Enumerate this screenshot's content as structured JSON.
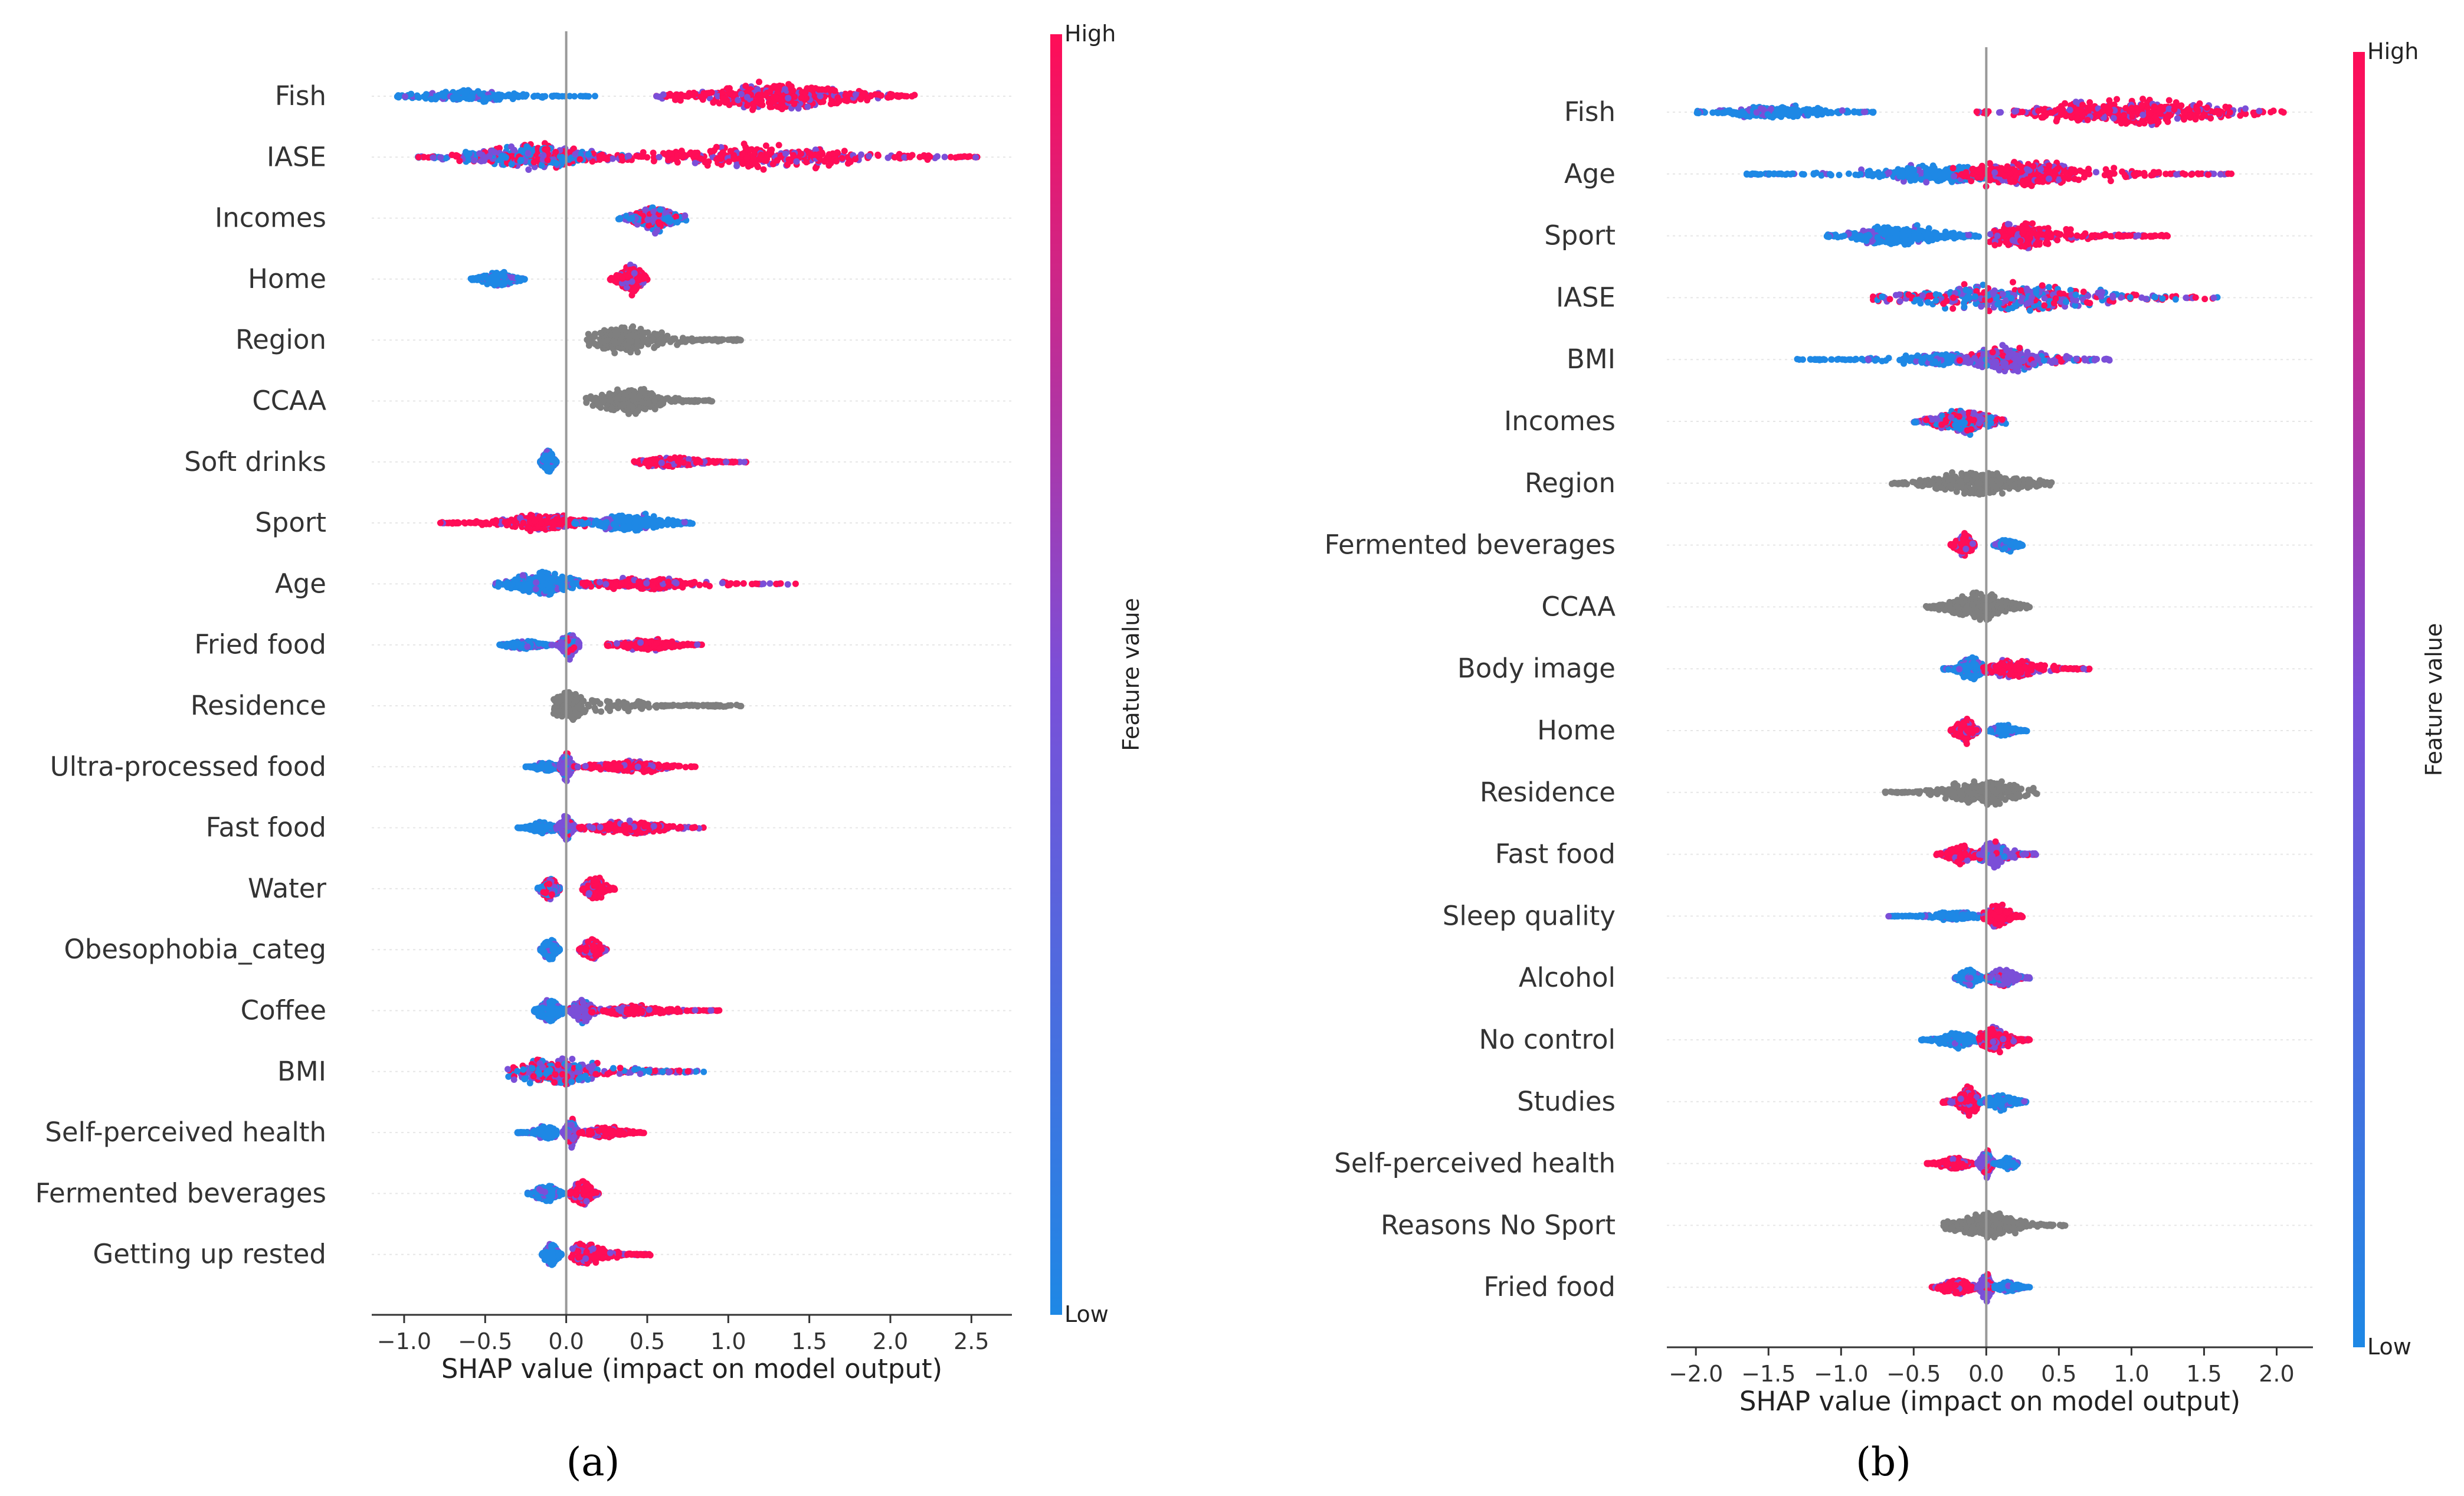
{
  "figure": {
    "caption_a": "(a)",
    "caption_b": "(b)"
  },
  "colors": {
    "low": "#1e88e5",
    "mid": "#7b4fd8",
    "high": "#ff0d57",
    "categorical": "#7f7f7f",
    "axis": "#333333",
    "zero_line": "#999999",
    "grid": "#e6e6e6"
  },
  "chart_data": [
    {
      "type": "scatter",
      "subtype": "shap-beeswarm",
      "panel": "(a)",
      "xlabel": "SHAP value (impact on model output)",
      "ylabel": "",
      "xlim": [
        -1.2,
        2.75
      ],
      "xticks": [
        -1.0,
        -0.5,
        0.0,
        0.5,
        1.0,
        1.5,
        2.0,
        2.5
      ],
      "xtick_labels": [
        "−1.0",
        "−0.5",
        "0.0",
        "0.5",
        "1.0",
        "1.5",
        "2.0",
        "2.5"
      ],
      "colorbar": {
        "title": "Feature value",
        "high": "High",
        "low": "Low"
      },
      "features": [
        {
          "name": "Fish",
          "cat": false,
          "groups": [
            {
              "c": "low",
              "min": -1.05,
              "max": 0.18,
              "center": -0.6,
              "w": 0.35
            },
            {
              "c": "high",
              "min": 0.55,
              "max": 2.15,
              "center": 1.3,
              "w": 1.0
            }
          ]
        },
        {
          "name": "IASE",
          "cat": false,
          "groups": [
            {
              "c": "mixed",
              "min": -0.95,
              "max": 0.4,
              "center": -0.2,
              "w": 0.85
            },
            {
              "c": "high",
              "min": 0.2,
              "max": 2.55,
              "center": 1.2,
              "w": 0.8
            }
          ]
        },
        {
          "name": "Incomes",
          "cat": false,
          "groups": [
            {
              "c": "mixed",
              "min": 0.32,
              "max": 0.75,
              "center": 0.55,
              "w": 0.85
            }
          ]
        },
        {
          "name": "Home",
          "cat": false,
          "groups": [
            {
              "c": "low",
              "min": -0.6,
              "max": -0.25,
              "center": -0.42,
              "w": 0.45
            },
            {
              "c": "high",
              "min": 0.27,
              "max": 0.5,
              "center": 0.4,
              "w": 0.95
            }
          ]
        },
        {
          "name": "Region",
          "cat": true,
          "groups": [
            {
              "c": "cat",
              "min": 0.12,
              "max": 1.08,
              "center": 0.35,
              "w": 0.85
            }
          ]
        },
        {
          "name": "CCAA",
          "cat": true,
          "groups": [
            {
              "c": "cat",
              "min": 0.12,
              "max": 0.9,
              "center": 0.38,
              "w": 0.9
            }
          ]
        },
        {
          "name": "Soft drinks",
          "cat": false,
          "groups": [
            {
              "c": "low",
              "min": -0.16,
              "max": -0.06,
              "center": -0.11,
              "w": 0.8
            },
            {
              "c": "high",
              "min": 0.4,
              "max": 1.12,
              "center": 0.65,
              "w": 0.35
            }
          ]
        },
        {
          "name": "Sport",
          "cat": false,
          "groups": [
            {
              "c": "high",
              "min": -0.8,
              "max": 0.2,
              "center": -0.12,
              "w": 0.6
            },
            {
              "c": "low",
              "min": 0.05,
              "max": 0.78,
              "center": 0.4,
              "w": 0.65
            }
          ]
        },
        {
          "name": "Age",
          "cat": false,
          "groups": [
            {
              "c": "low",
              "min": -0.45,
              "max": 0.2,
              "center": -0.15,
              "w": 0.8
            },
            {
              "c": "high",
              "min": 0.1,
              "max": 1.42,
              "center": 0.5,
              "w": 0.4
            }
          ]
        },
        {
          "name": "Fried food",
          "cat": false,
          "groups": [
            {
              "c": "low",
              "min": -0.42,
              "max": -0.08,
              "center": -0.25,
              "w": 0.3
            },
            {
              "c": "mid",
              "min": -0.06,
              "max": 0.08,
              "center": 0.02,
              "w": 0.9
            },
            {
              "c": "high",
              "min": 0.25,
              "max": 0.85,
              "center": 0.5,
              "w": 0.4
            }
          ]
        },
        {
          "name": "Residence",
          "cat": true,
          "groups": [
            {
              "c": "cat",
              "min": -0.08,
              "max": 1.08,
              "center": 0.02,
              "w": 0.9
            }
          ]
        },
        {
          "name": "Ultra-processed food",
          "cat": false,
          "groups": [
            {
              "c": "low",
              "min": -0.25,
              "max": -0.03,
              "center": -0.12,
              "w": 0.3
            },
            {
              "c": "mid",
              "min": -0.04,
              "max": 0.06,
              "center": 0.0,
              "w": 0.85
            },
            {
              "c": "high",
              "min": 0.05,
              "max": 0.8,
              "center": 0.4,
              "w": 0.4
            }
          ]
        },
        {
          "name": "Fast food",
          "cat": false,
          "groups": [
            {
              "c": "low",
              "min": -0.3,
              "max": -0.04,
              "center": -0.15,
              "w": 0.35
            },
            {
              "c": "mid",
              "min": -0.06,
              "max": 0.06,
              "center": 0.0,
              "w": 0.85
            },
            {
              "c": "high",
              "min": 0.08,
              "max": 0.85,
              "center": 0.4,
              "w": 0.45
            }
          ]
        },
        {
          "name": "Water",
          "cat": false,
          "groups": [
            {
              "c": "mixed",
              "min": -0.18,
              "max": -0.04,
              "center": -0.1,
              "w": 0.8
            },
            {
              "c": "high",
              "min": 0.1,
              "max": 0.3,
              "center": 0.18,
              "w": 0.8
            }
          ]
        },
        {
          "name": "Obesophobia_categ",
          "cat": false,
          "groups": [
            {
              "c": "low",
              "min": -0.16,
              "max": -0.04,
              "center": -0.1,
              "w": 0.8
            },
            {
              "c": "high",
              "min": 0.08,
              "max": 0.25,
              "center": 0.16,
              "w": 0.7
            }
          ]
        },
        {
          "name": "Coffee",
          "cat": false,
          "groups": [
            {
              "c": "low",
              "min": -0.2,
              "max": 0.0,
              "center": -0.1,
              "w": 0.8
            },
            {
              "c": "mid",
              "min": 0.02,
              "max": 0.2,
              "center": 0.1,
              "w": 0.85
            },
            {
              "c": "high",
              "min": 0.15,
              "max": 0.95,
              "center": 0.4,
              "w": 0.35
            }
          ]
        },
        {
          "name": "BMI",
          "cat": false,
          "groups": [
            {
              "c": "mixed",
              "min": -0.38,
              "max": 0.85,
              "center": -0.05,
              "w": 0.9
            }
          ]
        },
        {
          "name": "Self-perceived health",
          "cat": false,
          "groups": [
            {
              "c": "low",
              "min": -0.3,
              "max": -0.06,
              "center": -0.12,
              "w": 0.45
            },
            {
              "c": "mid",
              "min": -0.02,
              "max": 0.08,
              "center": 0.03,
              "w": 0.9
            },
            {
              "c": "high",
              "min": 0.08,
              "max": 0.48,
              "center": 0.25,
              "w": 0.4
            }
          ]
        },
        {
          "name": "Fermented beverages",
          "cat": false,
          "groups": [
            {
              "c": "low",
              "min": -0.24,
              "max": -0.02,
              "center": -0.12,
              "w": 0.6
            },
            {
              "c": "high",
              "min": 0.02,
              "max": 0.2,
              "center": 0.1,
              "w": 0.85
            }
          ]
        },
        {
          "name": "Getting up rested",
          "cat": false,
          "groups": [
            {
              "c": "low",
              "min": -0.15,
              "max": -0.03,
              "center": -0.09,
              "w": 0.8
            },
            {
              "c": "high",
              "min": 0.03,
              "max": 0.52,
              "center": 0.12,
              "w": 0.75
            }
          ]
        }
      ]
    },
    {
      "type": "scatter",
      "subtype": "shap-beeswarm",
      "panel": "(b)",
      "xlabel": "SHAP value (impact on model output)",
      "ylabel": "",
      "xlim": [
        -2.2,
        2.25
      ],
      "xticks": [
        -2.0,
        -1.5,
        -1.0,
        -0.5,
        0.0,
        0.5,
        1.0,
        1.5,
        2.0
      ],
      "xtick_labels": [
        "−2.0",
        "−1.5",
        "−1.0",
        "−0.5",
        "0.0",
        "0.5",
        "1.0",
        "1.5",
        "2.0"
      ],
      "colorbar": {
        "title": "Feature value",
        "high": "High",
        "low": "Low"
      },
      "features": [
        {
          "name": "Fish",
          "cat": false,
          "groups": [
            {
              "c": "low",
              "min": -2.0,
              "max": -0.75,
              "center": -1.45,
              "w": 0.45
            },
            {
              "c": "high",
              "min": -0.1,
              "max": 2.05,
              "center": 1.0,
              "w": 0.95
            }
          ]
        },
        {
          "name": "Age",
          "cat": false,
          "groups": [
            {
              "c": "low",
              "min": -1.65,
              "max": 0.3,
              "center": -0.3,
              "w": 0.6
            },
            {
              "c": "high",
              "min": -0.3,
              "max": 1.7,
              "center": 0.3,
              "w": 0.9
            }
          ]
        },
        {
          "name": "Sport",
          "cat": false,
          "groups": [
            {
              "c": "low",
              "min": -1.1,
              "max": -0.05,
              "center": -0.6,
              "w": 0.75
            },
            {
              "c": "high",
              "min": 0.0,
              "max": 1.25,
              "center": 0.25,
              "w": 0.85
            }
          ]
        },
        {
          "name": "IASE",
          "cat": false,
          "groups": [
            {
              "c": "mixed",
              "min": -0.78,
              "max": 1.6,
              "center": 0.2,
              "w": 1.0
            }
          ]
        },
        {
          "name": "BMI",
          "cat": false,
          "groups": [
            {
              "c": "low",
              "min": -1.35,
              "max": 0.0,
              "center": -0.3,
              "w": 0.4
            },
            {
              "c": "mid",
              "min": -0.2,
              "max": 0.85,
              "center": 0.15,
              "w": 0.85
            }
          ]
        },
        {
          "name": "Incomes",
          "cat": false,
          "groups": [
            {
              "c": "mixed",
              "min": -0.5,
              "max": 0.15,
              "center": -0.15,
              "w": 0.85
            }
          ]
        },
        {
          "name": "Region",
          "cat": true,
          "groups": [
            {
              "c": "cat",
              "min": -0.65,
              "max": 0.45,
              "center": -0.05,
              "w": 0.85
            }
          ]
        },
        {
          "name": "Fermented beverages",
          "cat": false,
          "groups": [
            {
              "c": "high",
              "min": -0.25,
              "max": -0.08,
              "center": -0.15,
              "w": 0.8
            },
            {
              "c": "low",
              "min": 0.05,
              "max": 0.25,
              "center": 0.15,
              "w": 0.45
            }
          ]
        },
        {
          "name": "CCAA",
          "cat": true,
          "groups": [
            {
              "c": "cat",
              "min": -0.42,
              "max": 0.3,
              "center": -0.05,
              "w": 0.9
            }
          ]
        },
        {
          "name": "Body image",
          "cat": false,
          "groups": [
            {
              "c": "low",
              "min": -0.3,
              "max": -0.02,
              "center": -0.1,
              "w": 0.75
            },
            {
              "c": "high",
              "min": -0.02,
              "max": 0.72,
              "center": 0.2,
              "w": 0.6
            }
          ]
        },
        {
          "name": "Home",
          "cat": false,
          "groups": [
            {
              "c": "high",
              "min": -0.25,
              "max": -0.05,
              "center": -0.14,
              "w": 0.85
            },
            {
              "c": "low",
              "min": 0.02,
              "max": 0.28,
              "center": 0.12,
              "w": 0.4
            }
          ]
        },
        {
          "name": "Residence",
          "cat": true,
          "groups": [
            {
              "c": "cat",
              "min": -0.7,
              "max": 0.35,
              "center": 0.0,
              "w": 0.85
            }
          ]
        },
        {
          "name": "Fast food",
          "cat": false,
          "groups": [
            {
              "c": "high",
              "min": -0.35,
              "max": -0.05,
              "center": -0.18,
              "w": 0.55
            },
            {
              "c": "mid",
              "min": -0.05,
              "max": 0.35,
              "center": 0.05,
              "w": 0.75
            }
          ]
        },
        {
          "name": "Sleep quality",
          "cat": false,
          "groups": [
            {
              "c": "low",
              "min": -0.7,
              "max": 0.0,
              "center": -0.2,
              "w": 0.3
            },
            {
              "c": "high",
              "min": -0.02,
              "max": 0.25,
              "center": 0.08,
              "w": 0.8
            }
          ]
        },
        {
          "name": "Alcohol",
          "cat": false,
          "groups": [
            {
              "c": "low",
              "min": -0.22,
              "max": -0.02,
              "center": -0.12,
              "w": 0.6
            },
            {
              "c": "mid",
              "min": 0.0,
              "max": 0.3,
              "center": 0.12,
              "w": 0.6
            }
          ]
        },
        {
          "name": "No control",
          "cat": false,
          "groups": [
            {
              "c": "low",
              "min": -0.45,
              "max": -0.05,
              "center": -0.2,
              "w": 0.5
            },
            {
              "c": "high",
              "min": -0.05,
              "max": 0.3,
              "center": 0.05,
              "w": 0.85
            }
          ]
        },
        {
          "name": "Studies",
          "cat": false,
          "groups": [
            {
              "c": "high",
              "min": -0.3,
              "max": -0.05,
              "center": -0.12,
              "w": 0.9
            },
            {
              "c": "low",
              "min": -0.05,
              "max": 0.28,
              "center": 0.1,
              "w": 0.5
            }
          ]
        },
        {
          "name": "Self-perceived health",
          "cat": false,
          "groups": [
            {
              "c": "high",
              "min": -0.42,
              "max": -0.08,
              "center": -0.22,
              "w": 0.35
            },
            {
              "c": "mid",
              "min": -0.06,
              "max": 0.06,
              "center": 0.0,
              "w": 0.85
            },
            {
              "c": "low",
              "min": 0.05,
              "max": 0.22,
              "center": 0.15,
              "w": 0.35
            }
          ]
        },
        {
          "name": "Reasons No Sport",
          "cat": true,
          "groups": [
            {
              "c": "cat",
              "min": -0.3,
              "max": 0.55,
              "center": 0.0,
              "w": 0.85
            }
          ]
        },
        {
          "name": "Fried food",
          "cat": false,
          "groups": [
            {
              "c": "high",
              "min": -0.38,
              "max": -0.05,
              "center": -0.2,
              "w": 0.5
            },
            {
              "c": "mid",
              "min": -0.06,
              "max": 0.06,
              "center": 0.0,
              "w": 0.85
            },
            {
              "c": "low",
              "min": 0.05,
              "max": 0.3,
              "center": 0.15,
              "w": 0.35
            }
          ]
        }
      ]
    }
  ]
}
